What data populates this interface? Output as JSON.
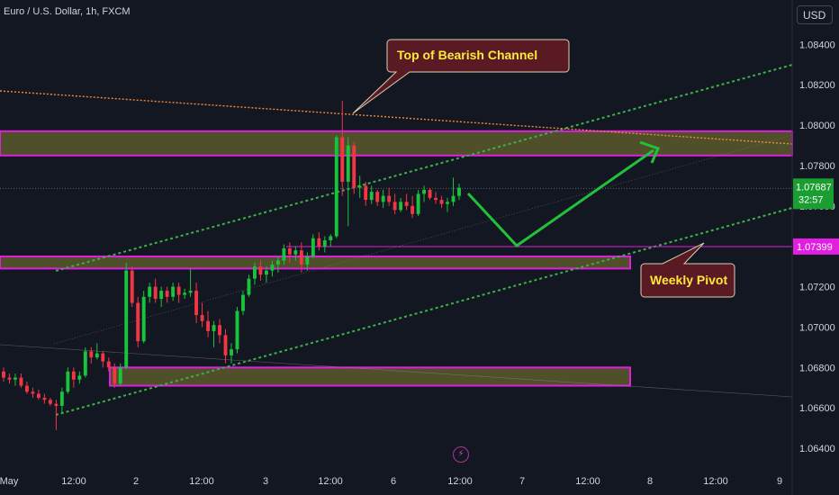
{
  "header": {
    "symbol": "Euro / U.S. Dollar, 1h, FXCM",
    "currency": "USD"
  },
  "icons": {
    "replay": "lightning-icon"
  },
  "colors": {
    "background": "#131722",
    "up": "#19c43c",
    "down": "#f23645",
    "zone_fill": "#5a5a2a",
    "zone_border": "#e21ee0",
    "channel": "#3bb24a",
    "resistance": "#f08a3c",
    "callout_bg": "#5a1a24",
    "callout_text": "#ffe83a",
    "arrow": "#21c23a",
    "pivot_label": "#e21ee0",
    "last_price_label": "#1a9e32"
  },
  "chart_data": {
    "type": "candlestick",
    "instrument": "Euro / U.S. Dollar",
    "timeframe": "1h",
    "source": "FXCM",
    "ylim": [
      1.0628,
      1.0862
    ],
    "y_ticks": [
      "1.08400",
      "1.08200",
      "1.08000",
      "1.07800",
      "1.07600",
      "1.07200",
      "1.07000",
      "1.06800",
      "1.06600",
      "1.06400"
    ],
    "x_ticks": [
      "May",
      "12:00",
      "2",
      "12:00",
      "3",
      "12:00",
      "6",
      "12:00",
      "7",
      "12:00",
      "8",
      "12:00",
      "9"
    ],
    "candles": [
      [
        1.0678,
        1.068,
        1.0673,
        1.0675
      ],
      [
        1.0675,
        1.0677,
        1.0672,
        1.0674
      ],
      [
        1.0674,
        1.0677,
        1.0671,
        1.0675
      ],
      [
        1.0675,
        1.0677,
        1.067,
        1.0671
      ],
      [
        1.0671,
        1.0673,
        1.0667,
        1.0668
      ],
      [
        1.0668,
        1.067,
        1.0665,
        1.0667
      ],
      [
        1.0667,
        1.0669,
        1.0664,
        1.0665
      ],
      [
        1.0665,
        1.0667,
        1.0662,
        1.0664
      ],
      [
        1.0664,
        1.0665,
        1.0661,
        1.0662
      ],
      [
        1.0662,
        1.0664,
        1.0649,
        1.0661
      ],
      [
        1.0661,
        1.067,
        1.0657,
        1.0668
      ],
      [
        1.0668,
        1.068,
        1.0667,
        1.0678
      ],
      [
        1.0678,
        1.068,
        1.067,
        1.0674
      ],
      [
        1.0674,
        1.0678,
        1.0672,
        1.0676
      ],
      [
        1.0676,
        1.069,
        1.0675,
        1.0688
      ],
      [
        1.0688,
        1.069,
        1.0682,
        1.0685
      ],
      [
        1.0685,
        1.0692,
        1.0684,
        1.0687
      ],
      [
        1.0687,
        1.0688,
        1.068,
        1.0683
      ],
      [
        1.0683,
        1.0685,
        1.0678,
        1.068
      ],
      [
        1.068,
        1.0682,
        1.067,
        1.0672
      ],
      [
        1.0672,
        1.0682,
        1.0671,
        1.068
      ],
      [
        1.068,
        1.0732,
        1.0679,
        1.0728
      ],
      [
        1.0728,
        1.073,
        1.071,
        1.0712
      ],
      [
        1.0712,
        1.0715,
        1.069,
        1.0693
      ],
      [
        1.0693,
        1.0718,
        1.0692,
        1.0715
      ],
      [
        1.0715,
        1.0722,
        1.0712,
        1.072
      ],
      [
        1.072,
        1.0724,
        1.0712,
        1.0714
      ],
      [
        1.0714,
        1.072,
        1.071,
        1.0718
      ],
      [
        1.0718,
        1.072,
        1.0712,
        1.0715
      ],
      [
        1.0715,
        1.0722,
        1.0713,
        1.072
      ],
      [
        1.072,
        1.0722,
        1.0712,
        1.0716
      ],
      [
        1.0716,
        1.0719,
        1.0714,
        1.0717
      ],
      [
        1.0717,
        1.0729,
        1.0715,
        1.0718
      ],
      [
        1.0718,
        1.0722,
        1.0702,
        1.0706
      ],
      [
        1.0706,
        1.0712,
        1.07,
        1.0703
      ],
      [
        1.0703,
        1.0708,
        1.0695,
        1.0698
      ],
      [
        1.0698,
        1.0703,
        1.069,
        1.0701
      ],
      [
        1.0701,
        1.0704,
        1.0692,
        1.0696
      ],
      [
        1.0696,
        1.0699,
        1.0682,
        1.0686
      ],
      [
        1.0686,
        1.0692,
        1.0682,
        1.0689
      ],
      [
        1.0689,
        1.071,
        1.0687,
        1.0708
      ],
      [
        1.0708,
        1.0718,
        1.0706,
        1.0716
      ],
      [
        1.0716,
        1.0726,
        1.0715,
        1.0724
      ],
      [
        1.0724,
        1.0732,
        1.0721,
        1.073
      ],
      [
        1.073,
        1.0733,
        1.0723,
        1.0726
      ],
      [
        1.0726,
        1.073,
        1.0722,
        1.0728
      ],
      [
        1.0728,
        1.0733,
        1.0725,
        1.0731
      ],
      [
        1.0731,
        1.0735,
        1.0727,
        1.0733
      ],
      [
        1.0733,
        1.0741,
        1.0731,
        1.0739
      ],
      [
        1.0739,
        1.0742,
        1.0732,
        1.0736
      ],
      [
        1.0736,
        1.074,
        1.0733,
        1.0738
      ],
      [
        1.0738,
        1.0742,
        1.0727,
        1.0731
      ],
      [
        1.0731,
        1.0737,
        1.0728,
        1.0735
      ],
      [
        1.0735,
        1.0746,
        1.0734,
        1.0744
      ],
      [
        1.0744,
        1.0747,
        1.0738,
        1.074
      ],
      [
        1.074,
        1.0745,
        1.0737,
        1.0743
      ],
      [
        1.0743,
        1.0746,
        1.074,
        1.0745
      ],
      [
        1.0745,
        1.0795,
        1.0744,
        1.0794
      ],
      [
        1.0794,
        1.0812,
        1.0765,
        1.0772
      ],
      [
        1.0772,
        1.0794,
        1.075,
        1.079
      ],
      [
        1.079,
        1.0792,
        1.0766,
        1.0769
      ],
      [
        1.0769,
        1.0775,
        1.0764,
        1.077
      ],
      [
        1.077,
        1.0772,
        1.076,
        1.0763
      ],
      [
        1.0763,
        1.077,
        1.0761,
        1.0767
      ],
      [
        1.0767,
        1.0768,
        1.076,
        1.0762
      ],
      [
        1.0762,
        1.0768,
        1.0759,
        1.0765
      ],
      [
        1.0765,
        1.0769,
        1.076,
        1.0762
      ],
      [
        1.0762,
        1.0766,
        1.0756,
        1.0758
      ],
      [
        1.0758,
        1.0764,
        1.0757,
        1.0762
      ],
      [
        1.0762,
        1.0766,
        1.0758,
        1.076
      ],
      [
        1.076,
        1.0765,
        1.0754,
        1.0756
      ],
      [
        1.0756,
        1.0768,
        1.0755,
        1.0766
      ],
      [
        1.0766,
        1.077,
        1.0762,
        1.0768
      ],
      [
        1.0768,
        1.0769,
        1.0763,
        1.0764
      ],
      [
        1.0764,
        1.0767,
        1.0761,
        1.0763
      ],
      [
        1.0763,
        1.0765,
        1.0759,
        1.0761
      ],
      [
        1.0761,
        1.0764,
        1.0757,
        1.0762
      ],
      [
        1.0762,
        1.0774,
        1.076,
        1.0765
      ],
      [
        1.0765,
        1.0771,
        1.0763,
        1.0769
      ]
    ],
    "zones": [
      {
        "name": "resistance-zone",
        "low": 1.0785,
        "high": 1.0797
      },
      {
        "name": "support-zone",
        "low": 1.0729,
        "high": 1.0735
      },
      {
        "name": "demand-zone",
        "low": 1.0671,
        "high": 1.068
      }
    ],
    "weekly_pivot": "1.07399",
    "last_price": "1.07687",
    "countdown": "32:57",
    "annotations": {
      "top": "Top  of Bearish Channel",
      "pivot": "Weekly Pivot"
    }
  }
}
